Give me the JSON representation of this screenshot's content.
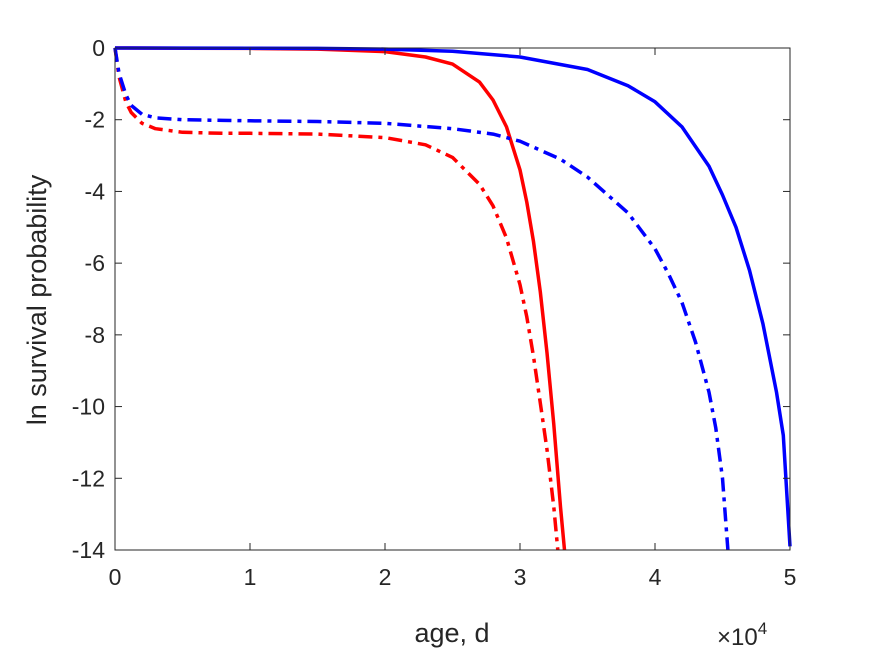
{
  "chart_data": {
    "type": "line",
    "xlabel": "age, d",
    "ylabel": "ln survival probability",
    "x_exponent_label": "×10",
    "x_exponent_power": "4",
    "xlim": [
      0,
      5
    ],
    "ylim": [
      -14,
      0
    ],
    "xticks": [
      "0",
      "1",
      "2",
      "3",
      "4",
      "5"
    ],
    "yticks": [
      "0",
      "-2",
      "-4",
      "-6",
      "-8",
      "-10",
      "-12",
      "-14"
    ],
    "grid": false,
    "series": [
      {
        "color": "#ff0000",
        "style": "solid",
        "x": [
          0,
          0.5,
          1.0,
          1.5,
          2.0,
          2.3,
          2.5,
          2.7,
          2.8,
          2.9,
          3.0,
          3.05,
          3.1,
          3.15,
          3.2,
          3.25,
          3.3,
          3.33
        ],
        "y": [
          0,
          -0.005,
          -0.01,
          -0.03,
          -0.1,
          -0.25,
          -0.45,
          -0.95,
          -1.45,
          -2.2,
          -3.4,
          -4.3,
          -5.4,
          -6.8,
          -8.5,
          -10.5,
          -12.8,
          -14
        ]
      },
      {
        "color": "#ff0000",
        "style": "dashdot",
        "x": [
          0,
          0.03,
          0.08,
          0.12,
          0.2,
          0.3,
          0.5,
          0.8,
          1.0,
          1.5,
          2.0,
          2.3,
          2.5,
          2.7,
          2.8,
          2.9,
          3.0,
          3.05,
          3.1,
          3.15,
          3.2,
          3.25,
          3.28
        ],
        "y": [
          0,
          -0.8,
          -1.5,
          -1.8,
          -2.1,
          -2.25,
          -2.35,
          -2.38,
          -2.38,
          -2.4,
          -2.5,
          -2.7,
          -3.05,
          -3.8,
          -4.4,
          -5.3,
          -6.6,
          -7.5,
          -8.6,
          -9.9,
          -11.2,
          -12.8,
          -14
        ]
      },
      {
        "color": "#0000ff",
        "style": "solid",
        "x": [
          0,
          1.0,
          1.5,
          2.0,
          2.5,
          3.0,
          3.5,
          3.8,
          4.0,
          4.2,
          4.4,
          4.5,
          4.6,
          4.7,
          4.8,
          4.9,
          4.95,
          5.0
        ],
        "y": [
          0,
          -0.005,
          -0.01,
          -0.03,
          -0.09,
          -0.25,
          -0.6,
          -1.05,
          -1.5,
          -2.2,
          -3.3,
          -4.1,
          -5.0,
          -6.2,
          -7.7,
          -9.6,
          -10.8,
          -13.9
        ]
      },
      {
        "color": "#0000ff",
        "style": "dashdot",
        "x": [
          0,
          0.03,
          0.08,
          0.12,
          0.2,
          0.3,
          0.5,
          0.8,
          1.0,
          1.5,
          2.0,
          2.5,
          2.8,
          3.0,
          3.3,
          3.5,
          3.8,
          4.0,
          4.1,
          4.2,
          4.3,
          4.4,
          4.45,
          4.5,
          4.54
        ],
        "y": [
          0,
          -0.7,
          -1.3,
          -1.6,
          -1.85,
          -1.95,
          -2.0,
          -2.02,
          -2.03,
          -2.05,
          -2.1,
          -2.25,
          -2.4,
          -2.6,
          -3.1,
          -3.6,
          -4.6,
          -5.6,
          -6.3,
          -7.1,
          -8.2,
          -9.6,
          -10.6,
          -12.0,
          -14
        ]
      }
    ]
  }
}
